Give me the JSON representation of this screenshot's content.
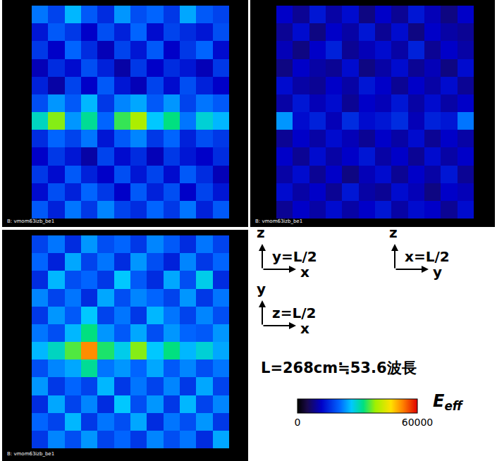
{
  "chart_data": [
    {
      "type": "heatmap",
      "plane": "y=L/2",
      "xlabel": "x",
      "ylabel": "z",
      "caption": "B: vmom63izb_be1",
      "tick_labels": false,
      "z": [
        [
          22000,
          18000,
          26000,
          20000,
          16000,
          24000,
          19000,
          21000,
          17000,
          25000,
          20000,
          18000
        ],
        [
          14000,
          20000,
          17000,
          12000,
          19000,
          15000,
          21000,
          13000,
          18000,
          16000,
          14000,
          19000
        ],
        [
          17000,
          12000,
          21000,
          16000,
          11000,
          18000,
          14000,
          20000,
          12000,
          17000,
          21000,
          13000
        ],
        [
          11000,
          16000,
          13000,
          19000,
          15000,
          10000,
          17000,
          12000,
          16000,
          14000,
          11000,
          17000
        ],
        [
          15000,
          10000,
          18000,
          12000,
          20000,
          14000,
          11000,
          18000,
          13000,
          19000,
          15000,
          12000
        ],
        [
          19000,
          24000,
          20000,
          26000,
          17000,
          23000,
          25000,
          20000,
          24000,
          18000,
          22000,
          20000
        ],
        [
          30000,
          38000,
          24000,
          32000,
          21000,
          35000,
          40000,
          27000,
          33000,
          22000,
          29000,
          26000
        ],
        [
          16000,
          21000,
          18000,
          22000,
          14000,
          20000,
          23000,
          17000,
          21000,
          15000,
          19000,
          17000
        ],
        [
          12000,
          17000,
          14000,
          10000,
          18000,
          13000,
          16000,
          11000,
          17000,
          14000,
          12000,
          16000
        ],
        [
          17000,
          13000,
          20000,
          15000,
          12000,
          19000,
          14000,
          18000,
          13000,
          20000,
          16000,
          11000
        ],
        [
          13000,
          19000,
          15000,
          21000,
          17000,
          12000,
          20000,
          15000,
          19000,
          12000,
          18000,
          14000
        ],
        [
          20000,
          15000,
          22000,
          17000,
          23000,
          18000,
          16000,
          21000,
          17000,
          22000,
          15000,
          20000
        ]
      ]
    },
    {
      "type": "heatmap",
      "plane": "x=L/2",
      "xlabel": "y",
      "ylabel": "z",
      "caption": "B: vmom63izb_be1",
      "tick_labels": false,
      "z": [
        [
          12000,
          9000,
          14000,
          10000,
          13000,
          8000,
          12000,
          9000,
          14000,
          11000,
          8000,
          12000
        ],
        [
          9000,
          13000,
          8000,
          12000,
          10000,
          14000,
          9000,
          13000,
          8000,
          12000,
          10000,
          9000
        ],
        [
          11000,
          8000,
          12000,
          15000,
          9000,
          11000,
          13000,
          10000,
          15000,
          9000,
          12000,
          10000
        ],
        [
          8000,
          12000,
          10000,
          9000,
          13000,
          8000,
          10000,
          13000,
          9000,
          11000,
          8000,
          13000
        ],
        [
          13000,
          10000,
          9000,
          12000,
          10000,
          14000,
          12000,
          9000,
          12000,
          10000,
          13000,
          9000
        ],
        [
          10000,
          14000,
          11000,
          13000,
          9000,
          12000,
          11000,
          14000,
          10000,
          13000,
          10000,
          12000
        ],
        [
          24000,
          13000,
          15000,
          11000,
          16000,
          13000,
          14000,
          16000,
          11000,
          15000,
          14000,
          22000
        ],
        [
          9000,
          12000,
          10000,
          13000,
          11000,
          9000,
          12000,
          10000,
          13000,
          9000,
          12000,
          10000
        ],
        [
          12000,
          9000,
          13000,
          10000,
          12000,
          14000,
          10000,
          12000,
          9000,
          13000,
          10000,
          12000
        ],
        [
          10000,
          13000,
          9000,
          12000,
          8000,
          11000,
          13000,
          9000,
          12000,
          10000,
          14000,
          9000
        ],
        [
          13000,
          10000,
          12000,
          9000,
          14000,
          10000,
          9000,
          13000,
          11000,
          8000,
          12000,
          11000
        ],
        [
          9000,
          12000,
          10000,
          13000,
          10000,
          12000,
          14000,
          10000,
          13000,
          12000,
          9000,
          13000
        ]
      ]
    },
    {
      "type": "heatmap",
      "plane": "z=L/2",
      "xlabel": "x",
      "ylabel": "y",
      "caption": "B: vmom63izb_be1",
      "tick_labels": false,
      "z": [
        [
          18000,
          22000,
          16000,
          24000,
          19000,
          21000,
          17000,
          23000,
          20000,
          16000,
          22000,
          18000
        ],
        [
          21000,
          15000,
          25000,
          18000,
          22000,
          16000,
          24000,
          19000,
          15000,
          23000,
          17000,
          21000
        ],
        [
          16000,
          26000,
          19000,
          21000,
          17000,
          27000,
          20000,
          16000,
          25000,
          19000,
          28000,
          16000
        ],
        [
          23000,
          18000,
          22000,
          16000,
          25000,
          19000,
          23000,
          21000,
          18000,
          24000,
          17000,
          22000
        ],
        [
          17000,
          24000,
          20000,
          27000,
          18000,
          22000,
          17000,
          26000,
          22000,
          18000,
          23000,
          19000
        ],
        [
          22000,
          19000,
          26000,
          33000,
          24000,
          20000,
          25000,
          19000,
          24000,
          21000,
          20000,
          24000
        ],
        [
          26000,
          30000,
          36000,
          52000,
          34000,
          28000,
          38000,
          27000,
          33000,
          26000,
          29000,
          25000
        ],
        [
          19000,
          23000,
          25000,
          32000,
          22000,
          24000,
          21000,
          25000,
          20000,
          23000,
          19000,
          22000
        ],
        [
          24000,
          17000,
          21000,
          18000,
          26000,
          17000,
          22000,
          18000,
          23000,
          17000,
          25000,
          18000
        ],
        [
          16000,
          25000,
          18000,
          23000,
          16000,
          27000,
          19000,
          24000,
          17000,
          26000,
          18000,
          23000
        ],
        [
          21000,
          18000,
          26000,
          17000,
          22000,
          19000,
          25000,
          16000,
          22000,
          19000,
          24000,
          17000
        ],
        [
          17000,
          23000,
          19000,
          24000,
          18000,
          21000,
          17000,
          23000,
          19000,
          22000,
          16000,
          25000
        ]
      ]
    }
  ],
  "note": "L=268cm≒53.6波長",
  "colorbar": {
    "symbol": "E",
    "subscript": "eff",
    "zlim": [
      0,
      60000
    ],
    "zticks": [
      0,
      60000
    ]
  }
}
